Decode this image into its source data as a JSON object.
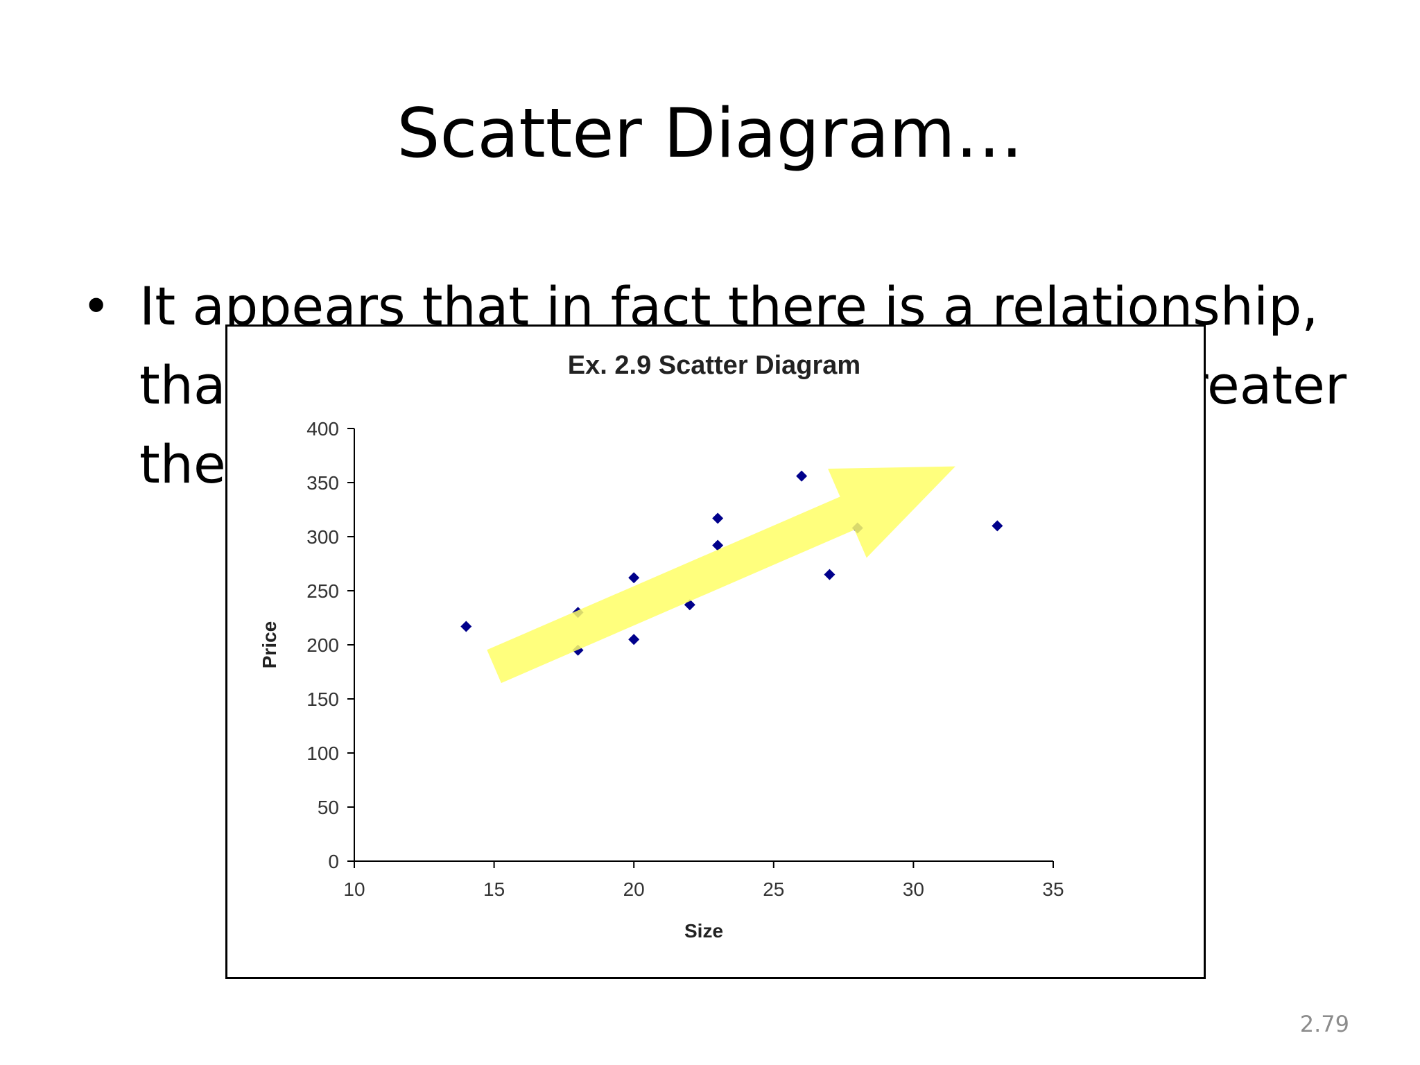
{
  "slide": {
    "title": "Scatter Diagram…",
    "bullet": "It appears that in fact there is a relationship, that is, the greater the house size the greater the selling price…",
    "bullet_marker": "•",
    "page_number": "2.79"
  },
  "chart_data": {
    "type": "scatter",
    "title": "Ex. 2.9 Scatter Diagram",
    "xlabel": "Size",
    "ylabel": "Price",
    "xlim": [
      10,
      35
    ],
    "ylim": [
      0,
      400
    ],
    "xticks": [
      10,
      15,
      20,
      25,
      30,
      35
    ],
    "yticks": [
      0,
      50,
      100,
      150,
      200,
      250,
      300,
      350,
      400
    ],
    "grid": false,
    "legend": "none",
    "marker_color": "#00008b",
    "series": [
      {
        "points": [
          {
            "x": 14,
            "y": 217
          },
          {
            "x": 18,
            "y": 230
          },
          {
            "x": 18,
            "y": 195
          },
          {
            "x": 20,
            "y": 262
          },
          {
            "x": 20,
            "y": 205
          },
          {
            "x": 22,
            "y": 237
          },
          {
            "x": 23,
            "y": 317
          },
          {
            "x": 23,
            "y": 292
          },
          {
            "x": 26,
            "y": 356
          },
          {
            "x": 27,
            "y": 265
          },
          {
            "x": 28,
            "y": 308
          },
          {
            "x": 33,
            "y": 310
          }
        ]
      }
    ],
    "annotation": {
      "shape": "arrow",
      "color": "#ffff66",
      "opacity": 0.85,
      "from": {
        "x": 15,
        "y": 180
      },
      "to": {
        "x": 31.5,
        "y": 365
      }
    }
  }
}
